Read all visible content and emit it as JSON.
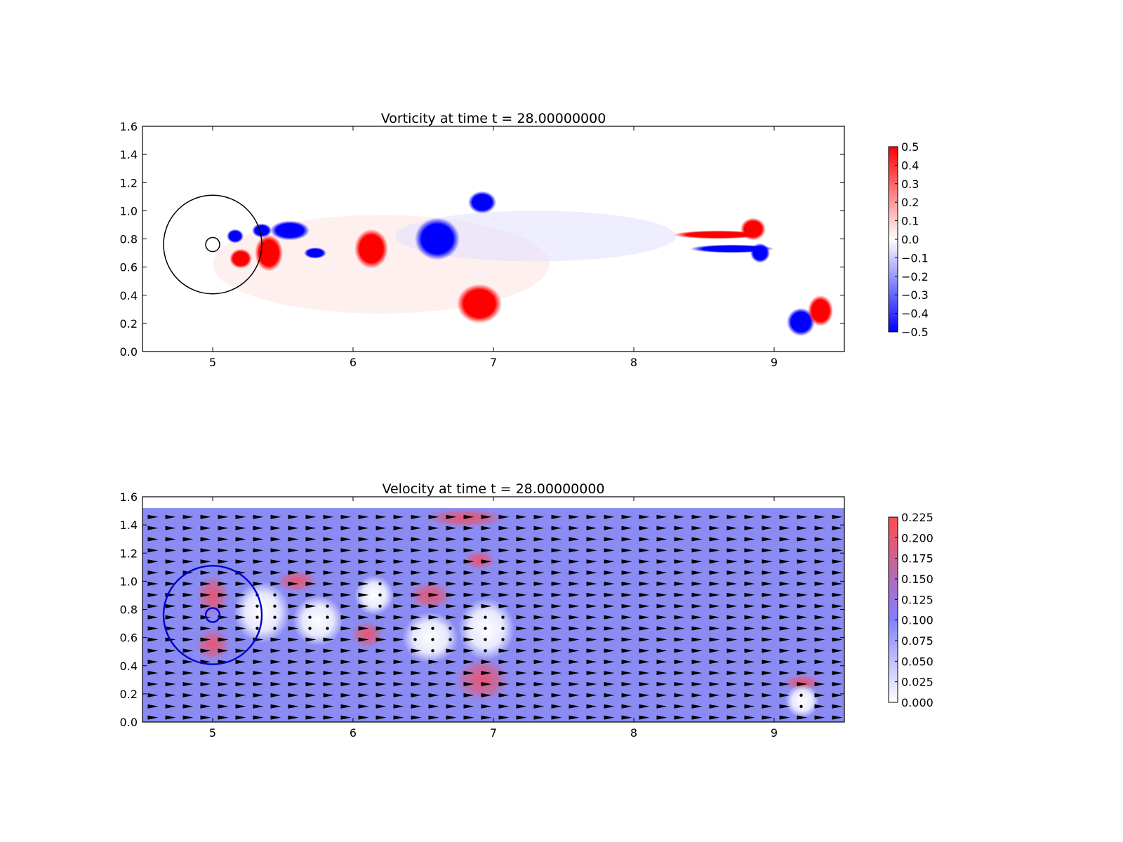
{
  "chart_data": [
    {
      "type": "heatmap",
      "title": "Vorticity at time t =    28.00000000",
      "xlim": [
        4.5,
        9.5
      ],
      "ylim": [
        0.0,
        1.6
      ],
      "xticks": [
        "5",
        "6",
        "7",
        "8",
        "9"
      ],
      "yticks": [
        "0.0",
        "0.2",
        "0.4",
        "0.6",
        "0.8",
        "1.0",
        "1.2",
        "1.4",
        "1.6"
      ],
      "colorbar": {
        "min": -0.5,
        "max": 0.5,
        "colormap": "bwr",
        "ticks": [
          "−0.5",
          "−0.4",
          "−0.3",
          "−0.2",
          "−0.1",
          "0.0",
          "0.1",
          "0.2",
          "0.3",
          "0.4",
          "0.5"
        ]
      },
      "overlays": {
        "circle_large": {
          "cx": 5.0,
          "cy": 0.76,
          "r": 0.35,
          "color": "#000000"
        },
        "circle_small": {
          "cx": 5.0,
          "cy": 0.76,
          "r": 0.05,
          "color": "#000000"
        }
      },
      "vortices": [
        {
          "x": 5.16,
          "y": 0.82,
          "rx": 0.06,
          "ry": 0.05,
          "sign": -1
        },
        {
          "x": 5.35,
          "y": 0.86,
          "rx": 0.07,
          "ry": 0.05,
          "sign": -1
        },
        {
          "x": 5.55,
          "y": 0.86,
          "rx": 0.14,
          "ry": 0.07,
          "sign": -1
        },
        {
          "x": 5.73,
          "y": 0.7,
          "rx": 0.08,
          "ry": 0.04,
          "sign": -1
        },
        {
          "x": 5.2,
          "y": 0.66,
          "rx": 0.08,
          "ry": 0.07,
          "sign": 1
        },
        {
          "x": 5.4,
          "y": 0.7,
          "rx": 0.1,
          "ry": 0.13,
          "sign": 1
        },
        {
          "x": 6.13,
          "y": 0.73,
          "rx": 0.12,
          "ry": 0.14,
          "sign": 1
        },
        {
          "x": 6.6,
          "y": 0.8,
          "rx": 0.16,
          "ry": 0.15,
          "sign": -1
        },
        {
          "x": 6.92,
          "y": 1.06,
          "rx": 0.1,
          "ry": 0.08,
          "sign": -1
        },
        {
          "x": 6.9,
          "y": 0.34,
          "rx": 0.16,
          "ry": 0.14,
          "sign": 1
        },
        {
          "x": 8.6,
          "y": 0.83,
          "rx": 0.32,
          "ry": 0.03,
          "sign": 1
        },
        {
          "x": 8.7,
          "y": 0.73,
          "rx": 0.3,
          "ry": 0.03,
          "sign": -1
        },
        {
          "x": 8.85,
          "y": 0.87,
          "rx": 0.09,
          "ry": 0.08,
          "sign": 1
        },
        {
          "x": 8.9,
          "y": 0.7,
          "rx": 0.07,
          "ry": 0.07,
          "sign": -1
        },
        {
          "x": 9.19,
          "y": 0.21,
          "rx": 0.1,
          "ry": 0.1,
          "sign": -1
        },
        {
          "x": 9.33,
          "y": 0.29,
          "rx": 0.09,
          "ry": 0.11,
          "sign": 1
        }
      ]
    },
    {
      "type": "heatmap",
      "title": "Velocity at time t =    28.00000000",
      "xlim": [
        4.5,
        9.5
      ],
      "ylim": [
        0.0,
        1.6
      ],
      "xticks": [
        "5",
        "6",
        "7",
        "8",
        "9"
      ],
      "yticks": [
        "0.0",
        "0.2",
        "0.4",
        "0.6",
        "0.8",
        "1.0",
        "1.2",
        "1.4",
        "1.6"
      ],
      "field_ymax": 1.52,
      "background_speed": 0.1,
      "colorbar": {
        "min": 0.0,
        "max": 0.225,
        "colormap": "white-blue-red",
        "ticks": [
          "0.000",
          "0.025",
          "0.050",
          "0.075",
          "0.100",
          "0.125",
          "0.150",
          "0.175",
          "0.200",
          "0.225"
        ]
      },
      "overlays": {
        "circle_large": {
          "cx": 5.0,
          "cy": 0.76,
          "r": 0.35,
          "color": "#0000cc"
        },
        "circle_small": {
          "cx": 5.0,
          "cy": 0.76,
          "r": 0.05,
          "color": "#0000cc"
        }
      },
      "quiver": {
        "x_count": 40,
        "y_count": 19,
        "color": "#000000"
      },
      "slow_regions": [
        {
          "x": 5.35,
          "y": 0.78,
          "rx": 0.2,
          "ry": 0.22
        },
        {
          "x": 5.75,
          "y": 0.72,
          "rx": 0.18,
          "ry": 0.18
        },
        {
          "x": 6.15,
          "y": 0.9,
          "rx": 0.14,
          "ry": 0.14
        },
        {
          "x": 6.55,
          "y": 0.6,
          "rx": 0.2,
          "ry": 0.18
        },
        {
          "x": 6.95,
          "y": 0.66,
          "rx": 0.2,
          "ry": 0.22
        },
        {
          "x": 9.2,
          "y": 0.15,
          "rx": 0.12,
          "ry": 0.12
        }
      ],
      "fast_regions": [
        {
          "x": 5.0,
          "y": 0.9,
          "rx": 0.12,
          "ry": 0.15
        },
        {
          "x": 5.0,
          "y": 0.55,
          "rx": 0.13,
          "ry": 0.12
        },
        {
          "x": 5.6,
          "y": 1.0,
          "rx": 0.15,
          "ry": 0.08
        },
        {
          "x": 6.1,
          "y": 0.62,
          "rx": 0.12,
          "ry": 0.1
        },
        {
          "x": 6.55,
          "y": 0.9,
          "rx": 0.16,
          "ry": 0.1
        },
        {
          "x": 6.92,
          "y": 0.3,
          "rx": 0.2,
          "ry": 0.16
        },
        {
          "x": 6.9,
          "y": 1.15,
          "rx": 0.12,
          "ry": 0.07
        },
        {
          "x": 6.8,
          "y": 1.45,
          "rx": 0.3,
          "ry": 0.07
        },
        {
          "x": 9.2,
          "y": 0.28,
          "rx": 0.14,
          "ry": 0.06
        }
      ]
    }
  ]
}
